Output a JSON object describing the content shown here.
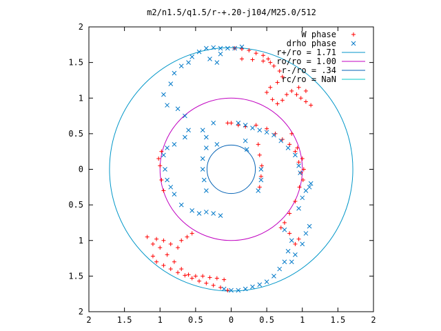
{
  "chart_data": {
    "type": "scatter",
    "title": "m2/n1.5/q1.5/r-+.20-j104/M25.0/512",
    "xlabel": "",
    "ylabel": "",
    "xlim": [
      -2,
      2
    ],
    "ylim": [
      -2,
      2
    ],
    "x_tick_values": [
      -2,
      -1.5,
      -1,
      -0.5,
      0,
      0.5,
      1,
      1.5,
      2
    ],
    "x_tick_labels": [
      "2",
      "1.5",
      "1",
      "0.5",
      "0",
      "0.5",
      "1",
      "1.5",
      "2"
    ],
    "y_tick_values": [
      2,
      1.5,
      1,
      0.5,
      0,
      -0.5,
      -1,
      -1.5,
      -2
    ],
    "y_tick_labels": [
      "2",
      "1.5",
      "1",
      "0.5",
      "0",
      "0.5",
      "1",
      "1.5",
      "2"
    ],
    "grid": false,
    "legend_position": "top-right",
    "series": [
      {
        "name": "W phase",
        "marker": "plus",
        "color": "#ff0000",
        "points": [
          [
            0.05,
            1.7
          ],
          [
            0.15,
            1.69
          ],
          [
            0.25,
            1.67
          ],
          [
            0.35,
            1.63
          ],
          [
            0.45,
            1.6
          ],
          [
            0.52,
            1.55
          ],
          [
            0.55,
            1.5
          ],
          [
            0.45,
            1.52
          ],
          [
            0.3,
            1.54
          ],
          [
            0.15,
            1.55
          ],
          [
            0.6,
            1.45
          ],
          [
            0.68,
            1.38
          ],
          [
            0.72,
            1.3
          ],
          [
            0.65,
            1.22
          ],
          [
            0.55,
            1.15
          ],
          [
            0.5,
            1.08
          ],
          [
            0.58,
            0.98
          ],
          [
            0.65,
            0.92
          ],
          [
            0.72,
            0.97
          ],
          [
            0.78,
            1.05
          ],
          [
            0.85,
            1.1
          ],
          [
            0.92,
            1.05
          ],
          [
            0.98,
            1.0
          ],
          [
            1.05,
            0.95
          ],
          [
            1.12,
            0.9
          ],
          [
            1.05,
            1.1
          ],
          [
            0.95,
            1.15
          ],
          [
            0.35,
            0.62
          ],
          [
            0.5,
            0.57
          ],
          [
            0.62,
            0.5
          ],
          [
            0.72,
            0.42
          ],
          [
            0.82,
            0.35
          ],
          [
            0.9,
            0.25
          ],
          [
            0.95,
            0.1
          ],
          [
            0.98,
            -0.05
          ],
          [
            0.96,
            -0.25
          ],
          [
            0.9,
            -0.45
          ],
          [
            0.82,
            -0.62
          ],
          [
            0.75,
            -0.75
          ],
          [
            0.7,
            -0.82
          ],
          [
            0.82,
            -0.9
          ],
          [
            0.95,
            -0.98
          ],
          [
            0.9,
            -1.05
          ],
          [
            0.85,
            0.5
          ],
          [
            0.93,
            0.3
          ],
          [
            1.0,
            0.15
          ],
          [
            1.02,
            0.0
          ],
          [
            1.01,
            -0.15
          ],
          [
            0.4,
            0.2
          ],
          [
            0.43,
            0.05
          ],
          [
            0.42,
            -0.1
          ],
          [
            0.4,
            -0.25
          ],
          [
            0.38,
            0.35
          ],
          [
            -0.05,
            0.65
          ],
          [
            0.0,
            0.65
          ],
          [
            0.1,
            0.62
          ],
          [
            0.2,
            0.6
          ],
          [
            -0.05,
            -1.7
          ],
          [
            -0.15,
            -1.66
          ],
          [
            -0.25,
            -1.63
          ],
          [
            -0.35,
            -1.6
          ],
          [
            -0.45,
            -1.57
          ],
          [
            -0.55,
            -1.53
          ],
          [
            -0.65,
            -1.49
          ],
          [
            -0.75,
            -1.45
          ],
          [
            -0.85,
            -1.4
          ],
          [
            -0.95,
            -1.35
          ],
          [
            -1.05,
            -1.3
          ],
          [
            -1.1,
            -1.22
          ],
          [
            -0.1,
            -1.55
          ],
          [
            -0.2,
            -1.53
          ],
          [
            -0.3,
            -1.52
          ],
          [
            -0.4,
            -1.5
          ],
          [
            -0.5,
            -1.5
          ],
          [
            -0.6,
            -1.48
          ],
          [
            -0.7,
            -1.4
          ],
          [
            -0.8,
            -1.3
          ],
          [
            -0.9,
            -1.2
          ],
          [
            -1.0,
            -1.1
          ],
          [
            -1.1,
            -1.05
          ],
          [
            -1.18,
            -0.95
          ],
          [
            -1.05,
            -0.98
          ],
          [
            -0.95,
            -1.0
          ],
          [
            -0.85,
            -1.05
          ],
          [
            -0.75,
            -1.1
          ],
          [
            -0.7,
            -1.0
          ],
          [
            -0.62,
            -0.95
          ],
          [
            -0.55,
            -0.9
          ],
          [
            -0.98,
            0.25
          ],
          [
            -1.0,
            0.05
          ],
          [
            -0.98,
            -0.15
          ],
          [
            -0.95,
            -0.3
          ],
          [
            -1.02,
            0.15
          ]
        ]
      },
      {
        "name": "drho phase",
        "marker": "cross",
        "color": "#0078c8",
        "points": [
          [
            -0.35,
            1.7
          ],
          [
            -0.25,
            1.71
          ],
          [
            -0.15,
            1.7
          ],
          [
            -0.05,
            1.7
          ],
          [
            -0.15,
            1.62
          ],
          [
            -0.45,
            1.65
          ],
          [
            -0.55,
            1.58
          ],
          [
            -0.6,
            1.5
          ],
          [
            -0.7,
            1.45
          ],
          [
            -0.8,
            1.35
          ],
          [
            -0.85,
            1.2
          ],
          [
            -0.95,
            1.05
          ],
          [
            -0.9,
            0.9
          ],
          [
            -0.75,
            0.85
          ],
          [
            -0.65,
            0.75
          ],
          [
            -0.6,
            0.55
          ],
          [
            -0.65,
            0.45
          ],
          [
            -0.8,
            0.35
          ],
          [
            -0.9,
            0.3
          ],
          [
            -0.95,
            0.2
          ],
          [
            -0.93,
            0.0
          ],
          [
            -0.9,
            -0.15
          ],
          [
            -0.85,
            -0.25
          ],
          [
            -0.8,
            -0.35
          ],
          [
            -0.7,
            -0.5
          ],
          [
            -0.55,
            -0.58
          ],
          [
            -0.45,
            -0.62
          ],
          [
            -0.35,
            -0.6
          ],
          [
            -0.25,
            -0.62
          ],
          [
            -0.15,
            -0.65
          ],
          [
            0.05,
            1.7
          ],
          [
            0.15,
            1.72
          ],
          [
            -0.3,
            1.55
          ],
          [
            -0.2,
            1.5
          ],
          [
            0.1,
            0.65
          ],
          [
            0.2,
            0.62
          ],
          [
            0.3,
            0.58
          ],
          [
            0.4,
            0.55
          ],
          [
            0.5,
            0.52
          ],
          [
            0.6,
            0.48
          ],
          [
            0.7,
            0.4
          ],
          [
            0.8,
            0.3
          ],
          [
            0.9,
            0.2
          ],
          [
            0.95,
            0.05
          ],
          [
            0.97,
            -0.05
          ],
          [
            -0.4,
            0.55
          ],
          [
            -0.35,
            0.45
          ],
          [
            -0.35,
            0.3
          ],
          [
            -0.4,
            0.15
          ],
          [
            -0.4,
            0.0
          ],
          [
            -0.38,
            -0.15
          ],
          [
            -0.35,
            -0.3
          ],
          [
            -0.25,
            0.65
          ],
          [
            -0.2,
            0.35
          ],
          [
            0.2,
            0.4
          ],
          [
            0.22,
            0.28
          ],
          [
            0.38,
            -0.3
          ],
          [
            0.42,
            -0.15
          ],
          [
            0.42,
            0.0
          ],
          [
            0.75,
            -0.85
          ],
          [
            0.85,
            -1.0
          ],
          [
            0.8,
            -1.15
          ],
          [
            0.75,
            -1.3
          ],
          [
            0.68,
            -1.4
          ],
          [
            0.6,
            -1.5
          ],
          [
            0.5,
            -1.58
          ],
          [
            0.4,
            -1.62
          ],
          [
            0.3,
            -1.65
          ],
          [
            0.2,
            -1.68
          ],
          [
            0.1,
            -1.7
          ],
          [
            0.0,
            -1.7
          ],
          [
            -0.1,
            -1.68
          ],
          [
            0.85,
            -1.3
          ],
          [
            0.9,
            -1.2
          ],
          [
            1.0,
            -1.05
          ],
          [
            1.05,
            -0.9
          ],
          [
            1.1,
            -0.8
          ],
          [
            0.95,
            -0.55
          ],
          [
            1.0,
            -0.4
          ],
          [
            1.05,
            -0.3
          ],
          [
            1.1,
            -0.25
          ],
          [
            1.12,
            -0.2
          ]
        ]
      },
      {
        "name": "r+/ro = 1.71",
        "type": "circle",
        "radius": 1.71,
        "color": "#0096c8"
      },
      {
        "name": "ro/ro = 1.00",
        "type": "circle",
        "radius": 1.0,
        "color": "#c000c0"
      },
      {
        "name": "r-/ro = .34",
        "type": "circle",
        "radius": 0.34,
        "color": "#0060b4"
      },
      {
        "name": "rc/ro = NaN",
        "type": "circle",
        "radius": null,
        "color": "#00c8c8"
      }
    ]
  }
}
